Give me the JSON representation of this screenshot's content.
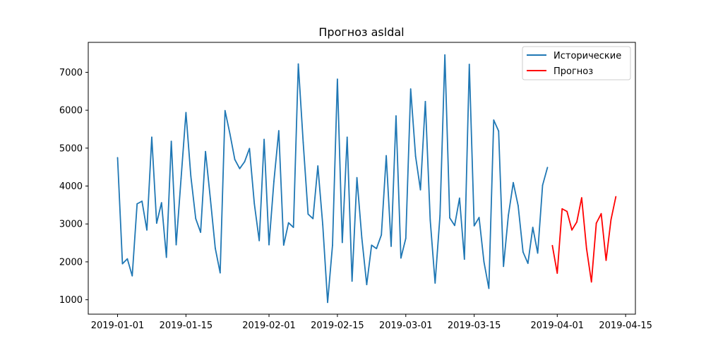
{
  "chart_data": {
    "type": "line",
    "title": "Прогноз asldal",
    "xlabel": "",
    "ylabel": "",
    "x_start": "2019-01-01",
    "xlim": [
      "2018-12-26",
      "2019-04-17"
    ],
    "ylim": [
      620,
      7790
    ],
    "xticks": [
      {
        "date": "2019-01-01",
        "label": "2019-01-01"
      },
      {
        "date": "2019-01-15",
        "label": "2019-01-15"
      },
      {
        "date": "2019-02-01",
        "label": "2019-02-01"
      },
      {
        "date": "2019-02-15",
        "label": "2019-02-15"
      },
      {
        "date": "2019-03-01",
        "label": "2019-03-01"
      },
      {
        "date": "2019-03-15",
        "label": "2019-03-15"
      },
      {
        "date": "2019-04-01",
        "label": "2019-04-01"
      },
      {
        "date": "2019-04-15",
        "label": "2019-04-15"
      }
    ],
    "yticks": [
      1000,
      2000,
      3000,
      4000,
      5000,
      6000,
      7000
    ],
    "grid": false,
    "legend_position": "top-right",
    "series": [
      {
        "name": "Исторические",
        "color": "#1f77b4",
        "start": "2019-01-01",
        "values": [
          4750,
          1950,
          2080,
          1630,
          3530,
          3600,
          2840,
          5290,
          3020,
          3560,
          2120,
          5180,
          2450,
          4200,
          5940,
          4260,
          3140,
          2780,
          4910,
          3660,
          2360,
          1710,
          5990,
          5380,
          4700,
          4460,
          4640,
          4990,
          3530,
          2560,
          5230,
          2450,
          4120,
          5460,
          2440,
          3030,
          2910,
          7220,
          5150,
          3260,
          3140,
          4530,
          2980,
          930,
          2440,
          6820,
          2510,
          5290,
          1490,
          4220,
          2630,
          1400,
          2440,
          2350,
          2710,
          4800,
          2410,
          5850,
          2100,
          2620,
          6560,
          4790,
          3900,
          6230,
          3100,
          1440,
          3220,
          7460,
          3160,
          2960,
          3680,
          2070,
          7210,
          2950,
          3170,
          2000,
          1300,
          5740,
          5450,
          1880,
          3230,
          4090,
          3480,
          2260,
          1960,
          2910,
          2230,
          4020,
          4490
        ]
      },
      {
        "name": "Прогноз",
        "color": "#ff0000",
        "start": "2019-03-31",
        "values": [
          2430,
          1700,
          3400,
          3330,
          2840,
          3050,
          3690,
          2350,
          1470,
          3020,
          3270,
          2040,
          3110,
          3720
        ]
      }
    ]
  }
}
